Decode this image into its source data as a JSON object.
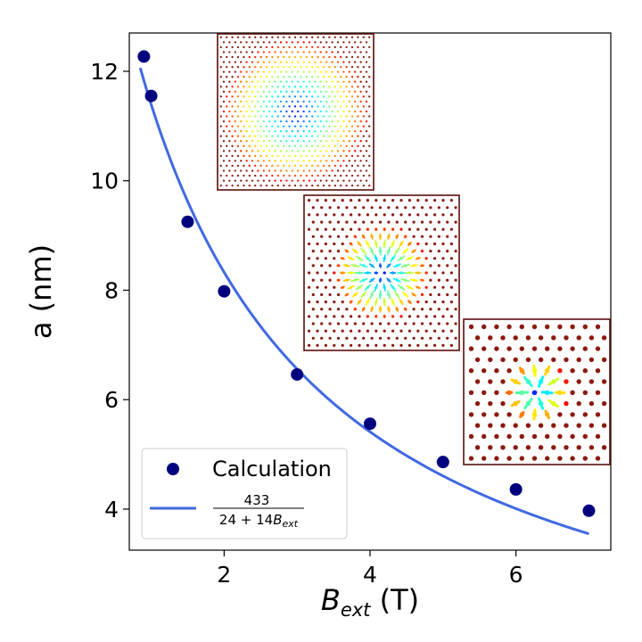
{
  "chart_data": {
    "type": "scatter",
    "title": "",
    "xlabel": {
      "base": "B",
      "subscript": "ext",
      "unit": "(T)"
    },
    "ylabel": "a (nm)",
    "xlim": [
      0.7,
      7.3
    ],
    "ylim": [
      3.25,
      12.7
    ],
    "xticks": [
      2,
      4,
      6
    ],
    "yticks": [
      4,
      6,
      8,
      10,
      12
    ],
    "series": [
      {
        "name": "Calculation",
        "kind": "scatter",
        "color": "#00007f",
        "x": [
          0.9,
          1.0,
          1.5,
          2.0,
          3.0,
          4.0,
          5.0,
          6.0,
          7.0
        ],
        "y": [
          12.27,
          11.55,
          9.25,
          7.98,
          6.46,
          5.56,
          4.86,
          4.36,
          3.97
        ]
      },
      {
        "name": "433 / (24 + 14 B_ext)",
        "kind": "line",
        "color": "#4169e1",
        "formula": {
          "numerator": 433,
          "constant": 24,
          "coefficient": 14
        },
        "x_range": [
          0.85,
          7.0
        ]
      }
    ],
    "legend": {
      "position": "lower-left",
      "entries": [
        {
          "label": "Calculation"
        },
        {
          "numerator": "433",
          "denominator": "24 + 14",
          "var": "B",
          "sub": "ext"
        }
      ]
    },
    "insets": [
      {
        "name": "inset-large-skyrmion",
        "position": "upper-center",
        "style": "dense"
      },
      {
        "name": "inset-medium-skyrmion",
        "position": "center",
        "style": "medium"
      },
      {
        "name": "inset-small-skyrmion",
        "position": "right",
        "style": "sparse"
      }
    ]
  }
}
